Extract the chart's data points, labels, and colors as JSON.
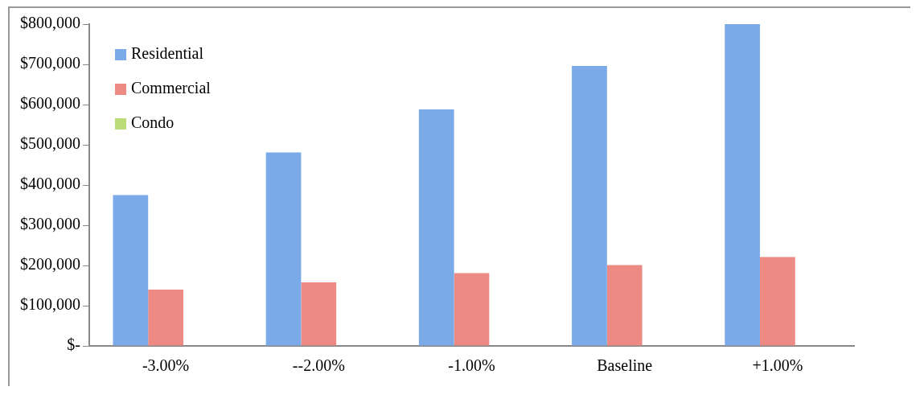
{
  "chart_data": {
    "type": "bar",
    "categories": [
      "-3.00%",
      "--2.00%",
      "-1.00%",
      "Baseline",
      "+1.00%"
    ],
    "series": [
      {
        "name": "Residential",
        "color": "#7aaae8",
        "values": [
          375000,
          481000,
          588000,
          696000,
          800000
        ]
      },
      {
        "name": "Commercial",
        "color": "#ee8a84",
        "values": [
          140000,
          158000,
          181000,
          201000,
          221000
        ]
      },
      {
        "name": "Condo",
        "color": "#bcdc7a",
        "values": [
          0,
          0,
          0,
          0,
          0
        ]
      }
    ],
    "ylim": [
      0,
      800000
    ],
    "yticks": [
      {
        "value": 0,
        "label": "$-"
      },
      {
        "value": 100000,
        "label": "$100,000"
      },
      {
        "value": 200000,
        "label": "$200,000"
      },
      {
        "value": 300000,
        "label": "$300,000"
      },
      {
        "value": 400000,
        "label": "$400,000"
      },
      {
        "value": 500000,
        "label": "$500,000"
      },
      {
        "value": 600000,
        "label": "$600,000"
      },
      {
        "value": 700000,
        "label": "$700,000"
      },
      {
        "value": 800000,
        "label": "$800,000"
      }
    ],
    "grid": false,
    "legend": "top left"
  }
}
